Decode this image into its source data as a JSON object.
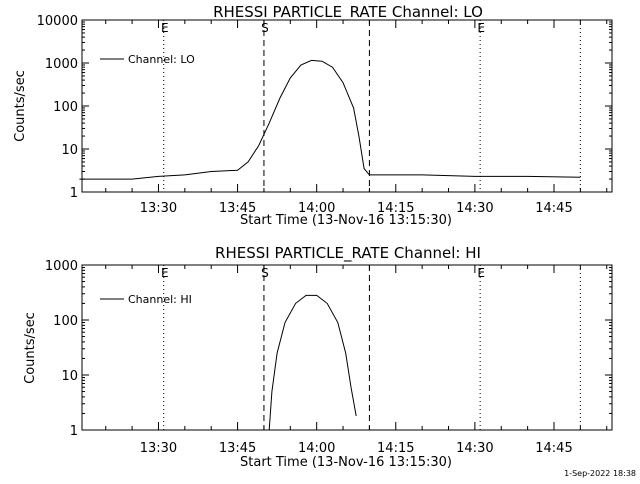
{
  "chart_data": [
    {
      "type": "line",
      "title": "RHESSI PARTICLE_RATE Channel: LO",
      "xlabel": "Start Time (13-Nov-16 13:15:30)",
      "ylabel": "Counts/sec",
      "yscale": "log",
      "ylim": [
        1,
        10000
      ],
      "y_ticks": [
        "1",
        "10",
        "100",
        "1000",
        "10000"
      ],
      "x_ticks": [
        "13:30",
        "13:45",
        "14:00",
        "14:15",
        "14:30",
        "14:45"
      ],
      "legend": {
        "label": "Channel: LO",
        "position": "top-left"
      },
      "event_markers": [
        {
          "label": "E",
          "time": "13:31",
          "style": "dotted"
        },
        {
          "label": "S",
          "time": "13:50",
          "style": "dashed"
        },
        {
          "label": "",
          "time": "14:10",
          "style": "dashed"
        },
        {
          "label": "E",
          "time": "14:31",
          "style": "dotted"
        },
        {
          "label": "",
          "time": "14:50",
          "style": "dotted"
        }
      ],
      "series": [
        {
          "name": "Channel: LO",
          "points": [
            [
              "13:15",
              2
            ],
            [
              "13:25",
              2
            ],
            [
              "13:30",
              2.3
            ],
            [
              "13:35",
              2.5
            ],
            [
              "13:40",
              3
            ],
            [
              "13:45",
              3.2
            ],
            [
              "13:47",
              5
            ],
            [
              "13:49",
              12
            ],
            [
              "13:51",
              40
            ],
            [
              "13:53",
              150
            ],
            [
              "13:55",
              450
            ],
            [
              "13:57",
              900
            ],
            [
              "13:59",
              1150
            ],
            [
              "14:01",
              1100
            ],
            [
              "14:03",
              800
            ],
            [
              "14:05",
              350
            ],
            [
              "14:07",
              90
            ],
            [
              "14:08",
              20
            ],
            [
              "14:09",
              3.5
            ],
            [
              "14:10",
              2.5
            ],
            [
              "14:20",
              2.5
            ],
            [
              "14:30",
              2.3
            ],
            [
              "14:40",
              2.3
            ],
            [
              "14:50",
              2.2
            ]
          ]
        }
      ]
    },
    {
      "type": "line",
      "title": "RHESSI PARTICLE_RATE Channel: HI",
      "xlabel": "Start Time (13-Nov-16 13:15:30)",
      "ylabel": "Counts/sec",
      "yscale": "log",
      "ylim": [
        1,
        1000
      ],
      "y_ticks": [
        "1",
        "10",
        "100",
        "1000"
      ],
      "x_ticks": [
        "13:30",
        "13:45",
        "14:00",
        "14:15",
        "14:30",
        "14:45"
      ],
      "legend": {
        "label": "Channel: HI",
        "position": "top-left"
      },
      "event_markers": [
        {
          "label": "E",
          "time": "13:31",
          "style": "dotted"
        },
        {
          "label": "S",
          "time": "13:50",
          "style": "dashed"
        },
        {
          "label": "",
          "time": "14:10",
          "style": "dashed"
        },
        {
          "label": "E",
          "time": "14:31",
          "style": "dotted"
        },
        {
          "label": "",
          "time": "14:50",
          "style": "dotted"
        }
      ],
      "series": [
        {
          "name": "Channel: HI",
          "points": [
            [
              "13:51",
              1
            ],
            [
              "13:51:30",
              5
            ],
            [
              "13:52:30",
              25
            ],
            [
              "13:54",
              90
            ],
            [
              "13:56",
              200
            ],
            [
              "13:58",
              280
            ],
            [
              "14:00",
              280
            ],
            [
              "14:02",
              200
            ],
            [
              "14:04",
              90
            ],
            [
              "14:05:30",
              25
            ],
            [
              "14:06:30",
              6
            ],
            [
              "14:07:30",
              1.8
            ]
          ]
        }
      ]
    }
  ],
  "footer": {
    "timestamp": "1-Sep-2022 18:38"
  }
}
